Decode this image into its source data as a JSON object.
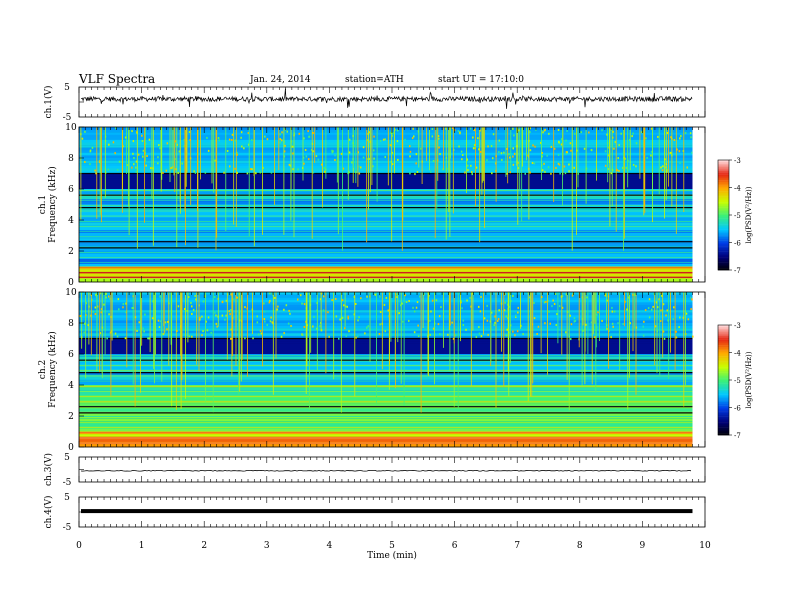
{
  "header": {
    "title": "VLF Spectra",
    "date": "Jan. 24, 2014",
    "station": "station=ATH",
    "start": "start UT =  17:10:0"
  },
  "chart_data": [
    {
      "type": "line",
      "ylabel": "ch.1(V)",
      "ylim": [
        -5,
        5
      ],
      "yticks": [
        "5",
        "-5"
      ],
      "note": "noisy waveform around 0 V",
      "color": "#000000"
    },
    {
      "type": "heatmap",
      "ylabel": "ch.1 Frequency (kHz)",
      "ylim": [
        0,
        10
      ],
      "yticks": [
        "0",
        "2",
        "4",
        "6",
        "8",
        "10"
      ],
      "colorbar": {
        "label": "log(PSD(V²/Hz))",
        "range": [
          -7,
          -3
        ],
        "ticks": [
          "-3",
          "-4",
          "-5",
          "-6",
          "-7"
        ]
      }
    },
    {
      "type": "heatmap",
      "ylabel": "ch.2 Frequency (kHz)",
      "ylim": [
        0,
        10
      ],
      "yticks": [
        "0",
        "2",
        "4",
        "6",
        "8",
        "10"
      ],
      "colorbar": {
        "label": "log(PSD(V²/Hz))",
        "range": [
          -7,
          -3
        ],
        "ticks": [
          "-3",
          "-4",
          "-5",
          "-6",
          "-7"
        ]
      }
    },
    {
      "type": "line",
      "ylabel": "ch.3(V)",
      "ylim": [
        -5,
        5
      ],
      "yticks": [
        "5",
        "-5"
      ],
      "note": "nearly flat trace",
      "color": "#000000"
    },
    {
      "type": "line",
      "ylabel": "ch.4(V)",
      "ylim": [
        -5,
        5
      ],
      "yticks": [
        "5",
        "-5"
      ],
      "note": "thick flat trace",
      "color": "#000000"
    }
  ],
  "xaxis": {
    "label": "Time (min)",
    "xlim": [
      0,
      10
    ],
    "ticks": [
      "0",
      "1",
      "2",
      "3",
      "4",
      "5",
      "6",
      "7",
      "8",
      "9",
      "10"
    ],
    "data_end": 9.8
  }
}
